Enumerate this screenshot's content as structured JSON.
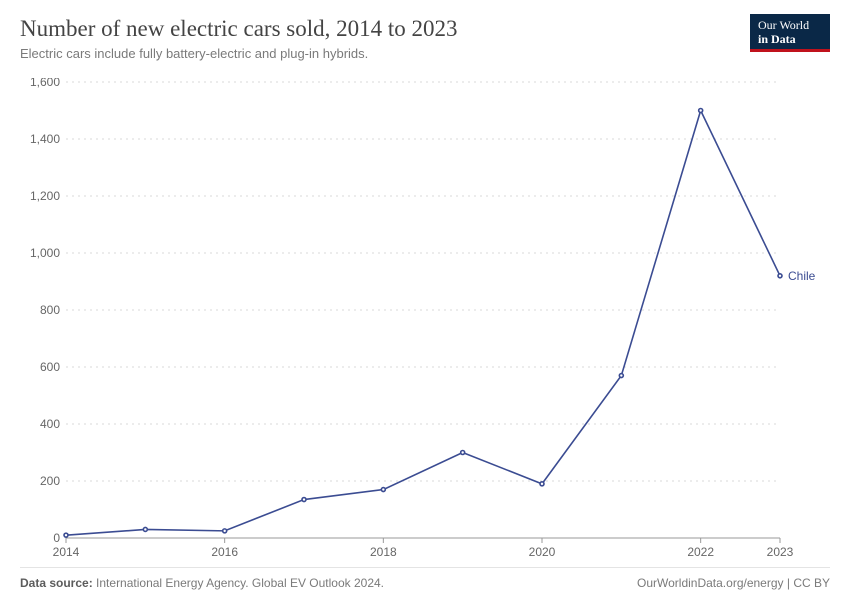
{
  "header": {
    "title": "Number of new electric cars sold, 2014 to 2023",
    "subtitle": "Electric cars include fully battery-electric and plug-in hybrids."
  },
  "logo": {
    "line1": "Our World",
    "line2": "in Data",
    "bg": "#0a2847",
    "accent": "#c0121c"
  },
  "chart": {
    "type": "line",
    "background_color": "#ffffff",
    "grid_color": "#d8d8d8",
    "axis_color": "#999999",
    "tick_color": "#666666",
    "tick_fontsize": 12,
    "x": {
      "years": [
        2014,
        2015,
        2016,
        2017,
        2018,
        2019,
        2020,
        2021,
        2022,
        2023
      ],
      "tick_years": [
        2014,
        2016,
        2018,
        2020,
        2022,
        2023
      ]
    },
    "y": {
      "min": 0,
      "max": 1600,
      "ticks": [
        0,
        200,
        400,
        600,
        800,
        1000,
        1200,
        1400,
        1600
      ],
      "tick_labels": [
        "0",
        "200",
        "400",
        "600",
        "800",
        "1,000",
        "1,200",
        "1,400",
        "1,600"
      ]
    },
    "series": [
      {
        "name": "Chile",
        "color": "#3b4c92",
        "line_width": 1.6,
        "marker_size": 2,
        "values": [
          10,
          30,
          25,
          135,
          170,
          300,
          190,
          570,
          1500,
          920
        ]
      }
    ]
  },
  "footer": {
    "source_label": "Data source:",
    "source_text": "International Energy Agency. Global EV Outlook 2024.",
    "credit": "OurWorldinData.org/energy",
    "license": "CC BY"
  }
}
